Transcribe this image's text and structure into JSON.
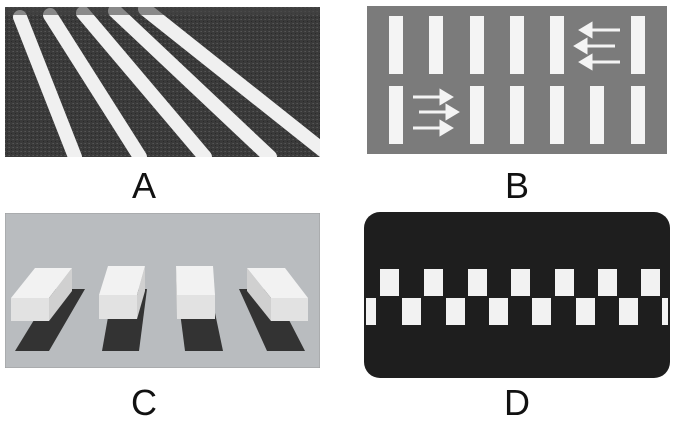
{
  "labels": {
    "a": "A",
    "b": "B",
    "c": "C",
    "d": "D"
  },
  "colors": {
    "asphalt": "#3a3a3a",
    "road_gray": "#7b7b7b",
    "panel_c_bg": "#b9bcbf",
    "stripe_white": "#f4f4f4",
    "panel_d_bg": "#1e1e1e"
  },
  "icons": {
    "panel_b_arrows_left": "left-arrow-icon",
    "panel_b_arrows_right": "right-arrow-icon"
  }
}
